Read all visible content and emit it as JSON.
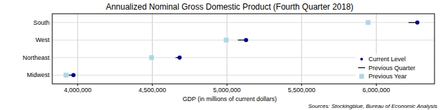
{
  "chart_data": {
    "type": "scatter",
    "orientation": "horizontal",
    "title": "Annualized Nominal Gross Domestic Product (Fourth Quarter 2018)",
    "x_label": "GDP (in millions of current dollars)",
    "annotation": "Sources: Stockingblue, Bureau of Economic Analysis",
    "categories": [
      "South",
      "West",
      "Northeast",
      "Midwest"
    ],
    "series": [
      {
        "name": "Current Level",
        "color": "#00008b",
        "marker": "circle",
        "values": [
          6275000,
          5128000,
          4683000,
          3972000
        ]
      },
      {
        "name": "Previous Quarter",
        "color": "#000000",
        "line_style": "solid",
        "values": [
          6216000,
          5073000,
          4656000,
          3940000
        ]
      },
      {
        "name": "Previous Year",
        "color": "#add8e6",
        "marker": "square",
        "values": [
          5945000,
          4995000,
          4495000,
          3922000
        ]
      }
    ],
    "xlim": [
      3830000,
      6390000
    ],
    "xticks": [
      {
        "value": 4000000,
        "label": "4,000,000"
      },
      {
        "value": 4500000,
        "label": "4,500,000"
      },
      {
        "value": 5000000,
        "label": "5,000,000"
      },
      {
        "value": 5500000,
        "label": "5,500,000"
      },
      {
        "value": 6000000,
        "label": "6,000,000"
      }
    ],
    "grid": true,
    "legend": "lower right"
  }
}
